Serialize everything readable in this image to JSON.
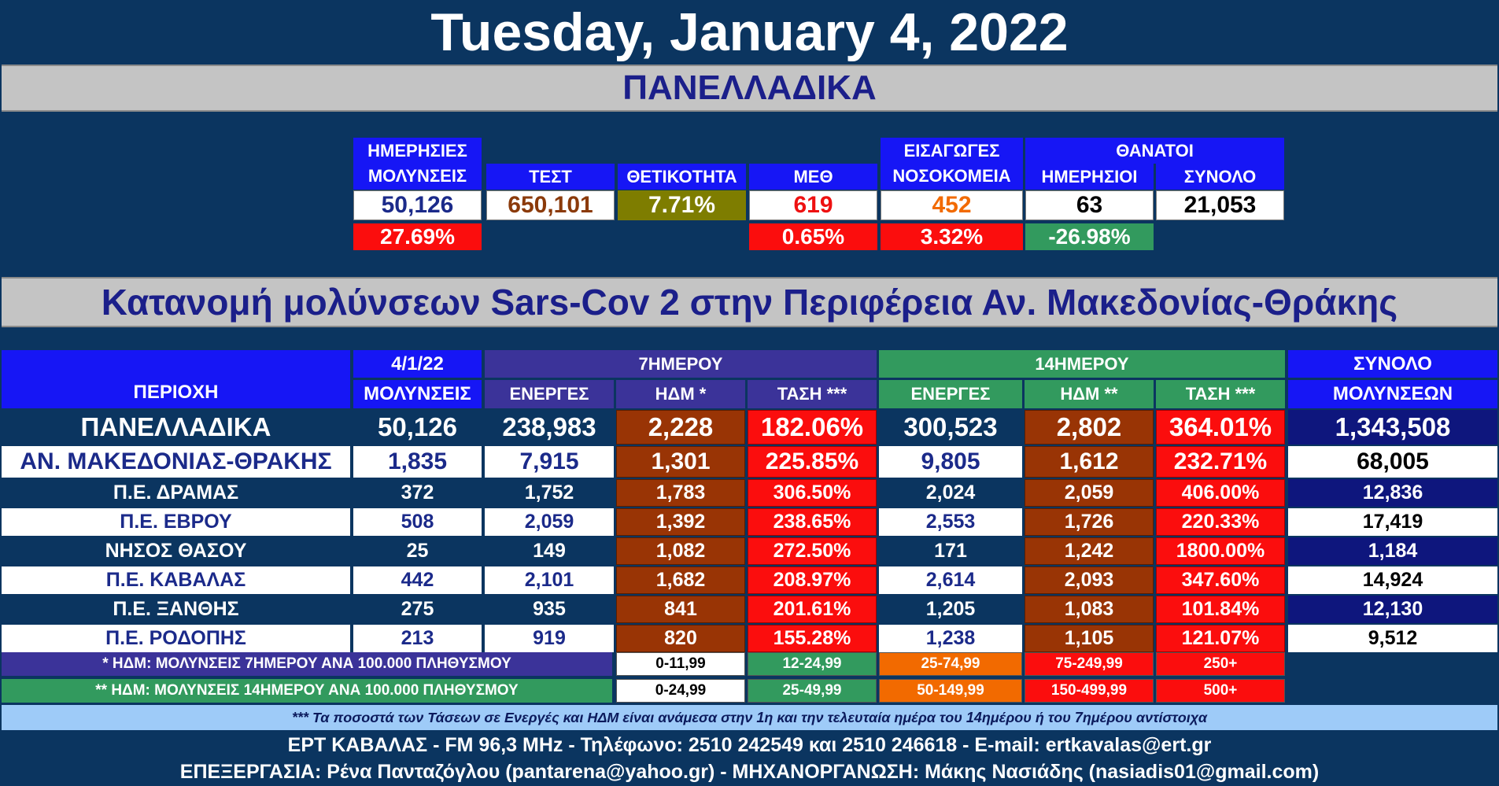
{
  "title": "Tuesday, January 4, 2022",
  "section1": "ΠΑΝΕΛΛΑΔΙΚΑ",
  "summary": {
    "h_daily_cases_1": "ΗΜΕΡΗΣΙΕΣ",
    "h_daily_cases_2": "ΜΟΛΥΝΣΕΙΣ",
    "h_tests": "ΤΕΣΤ",
    "h_positivity": "ΘΕΤΙΚΟΤΗΤΑ",
    "h_icu": "ΜΕΘ",
    "h_admissions_1": "ΕΙΣΑΓΩΓΕΣ",
    "h_admissions_2": "ΝΟΣΟΚΟΜΕΙΑ",
    "h_deaths": "ΘΑΝΑΤΟΙ",
    "h_deaths_daily": "ΗΜΕΡΗΣΙΟΙ",
    "h_deaths_total": "ΣΥΝΟΛΟ",
    "daily_cases": "50,126",
    "tests": "650,101",
    "positivity": "7.71%",
    "icu": "619",
    "admissions": "452",
    "deaths_daily": "63",
    "deaths_total": "21,053",
    "daily_cases_change": "27.69%",
    "icu_change": "0.65%",
    "admissions_change": "3.32%",
    "deaths_change": "-26.98%"
  },
  "section2": "Κατανομή μολύνσεων Sars-Cov 2 στην Περιφέρεια Αν. Μακεδονίας-Θράκης",
  "table": {
    "h_region": "ΠΕΡΙΟΧΗ",
    "h_date": "4/1/22",
    "h_cases": "ΜΟΛΥΝΣΕΙΣ",
    "h_7day": "7ΗΜΕΡΟΥ",
    "h_14day": "14ΗΜΕΡΟΥ",
    "h_active": "ΕΝΕΡΓΕΣ",
    "h_ndm7": "ΗΔΜ *",
    "h_trend7": "ΤΑΣΗ ***",
    "h_ndm14": "ΗΔΜ **",
    "h_trend14": "ΤΑΣΗ ***",
    "h_total_1": "ΣΥΝΟΛΟ",
    "h_total_2": "ΜΟΛΥΝΣΕΩΝ",
    "rows": [
      {
        "region": "ΠΑΝΕΛΛΑΔΙΚΑ",
        "cases": "50,126",
        "active7": "238,983",
        "ndm7": "2,228",
        "trend7": "182.06%",
        "active14": "300,523",
        "ndm14": "2,802",
        "trend14": "364.01%",
        "total": "1,343,508"
      },
      {
        "region": "ΑΝ. ΜΑΚΕΔΟΝΙΑΣ-ΘΡΑΚΗΣ",
        "cases": "1,835",
        "active7": "7,915",
        "ndm7": "1,301",
        "trend7": "225.85%",
        "active14": "9,805",
        "ndm14": "1,612",
        "trend14": "232.71%",
        "total": "68,005"
      },
      {
        "region": "Π.Ε. ΔΡΑΜΑΣ",
        "cases": "372",
        "active7": "1,752",
        "ndm7": "1,783",
        "trend7": "306.50%",
        "active14": "2,024",
        "ndm14": "2,059",
        "trend14": "406.00%",
        "total": "12,836"
      },
      {
        "region": "Π.Ε. ΕΒΡΟΥ",
        "cases": "508",
        "active7": "2,059",
        "ndm7": "1,392",
        "trend7": "238.65%",
        "active14": "2,553",
        "ndm14": "1,726",
        "trend14": "220.33%",
        "total": "17,419"
      },
      {
        "region": "ΝΗΣΟΣ ΘΑΣΟΥ",
        "cases": "25",
        "active7": "149",
        "ndm7": "1,082",
        "trend7": "272.50%",
        "active14": "171",
        "ndm14": "1,242",
        "trend14": "1800.00%",
        "total": "1,184"
      },
      {
        "region": "Π.Ε. ΚΑΒΑΛΑΣ",
        "cases": "442",
        "active7": "2,101",
        "ndm7": "1,682",
        "trend7": "208.97%",
        "active14": "2,614",
        "ndm14": "2,093",
        "trend14": "347.60%",
        "total": "14,924"
      },
      {
        "region": "Π.Ε. ΞΑΝΘΗΣ",
        "cases": "275",
        "active7": "935",
        "ndm7": "841",
        "trend7": "201.61%",
        "active14": "1,205",
        "ndm14": "1,083",
        "trend14": "101.84%",
        "total": "12,130"
      },
      {
        "region": "Π.Ε. ΡΟΔΟΠΗΣ",
        "cases": "213",
        "active7": "919",
        "ndm7": "820",
        "trend7": "155.28%",
        "active14": "1,238",
        "ndm14": "1,105",
        "trend14": "121.07%",
        "total": "9,512"
      }
    ]
  },
  "legend": {
    "l7_label": "* ΗΔΜ: ΜΟΛΥΝΣΕΙΣ 7ΗΜΕΡΟΥ ΑΝΑ 100.000 ΠΛΗΘΥΣΜΟΥ",
    "l7": [
      "0-11,99",
      "12-24,99",
      "25-74,99",
      "75-249,99",
      "250+"
    ],
    "l14_label": "** ΗΔΜ: ΜΟΛΥΝΣΕΙΣ 14ΗΜΕΡΟΥ ΑΝΑ 100.000 ΠΛΗΘΥΣΜΟΥ",
    "l14": [
      "0-24,99",
      "25-49,99",
      "50-149,99",
      "150-499,99",
      "500+"
    ],
    "colors": [
      "#ffffff",
      "#329a5e",
      "#f26a00",
      "#fb0d0d",
      "#fb0d0d"
    ]
  },
  "note": "*** Τα ποσοστά των Τάσεων σε Ενεργές και ΗΔΜ είναι ανάμεσα στην 1η και την τελευταία ημέρα του 14ημέρου ή του 7ημέρου αντίστοιχα",
  "footer1": "ΕΡΤ ΚΑΒΑΛΑΣ - FM 96,3 MHz - Τηλέφωνο:  2510 242549 και 2510 246618 - E-mail: ertkavalas@ert.gr",
  "footer2": "ΕΠΕΞΕΡΓΑΣΙΑ: Ρένα Πανταζόγλου (pantarena@yahoo.gr) - ΜΗΧΑΝΟΡΓΑΝΩΣΗ: Μάκης Νασιάδης (nasiadis01@gmail.com)"
}
